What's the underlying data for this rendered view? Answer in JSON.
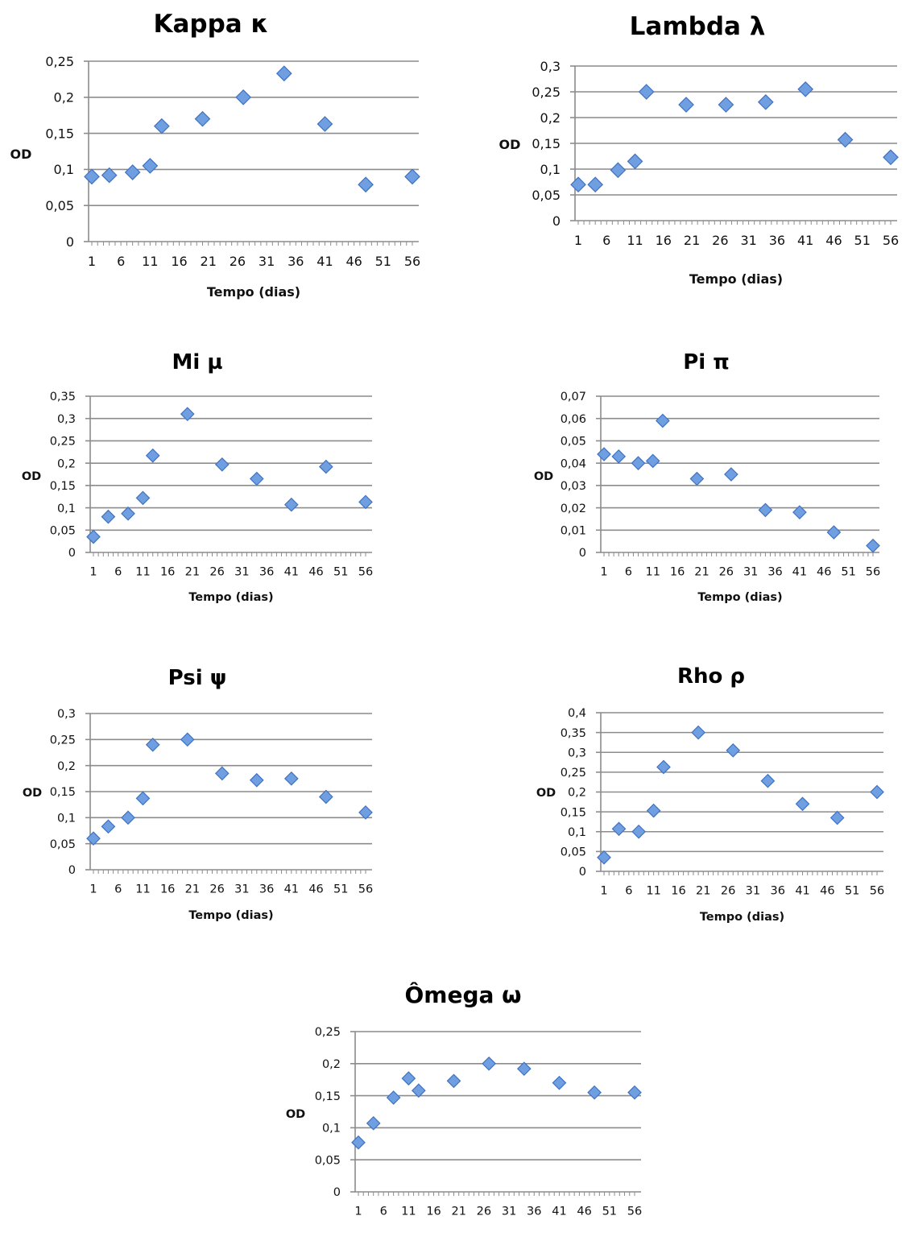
{
  "chart_data": [
    {
      "type": "scatter",
      "title": "Kappa κ",
      "xlabel": "Tempo (dias)",
      "ylabel": "OD",
      "ylim": [
        0,
        0.25
      ],
      "yticks": [
        "0",
        "0,05",
        "0,1",
        "0,15",
        "0,2",
        "0,25"
      ],
      "xlim": [
        1,
        56
      ],
      "xticks": [
        "1",
        "6",
        "11",
        "16",
        "21",
        "26",
        "31",
        "36",
        "41",
        "46",
        "51",
        "56"
      ],
      "grid": true,
      "x": [
        1,
        4,
        8,
        11,
        13,
        20,
        27,
        34,
        41,
        48,
        56
      ],
      "y": [
        0.09,
        0.092,
        0.096,
        0.105,
        0.16,
        0.17,
        0.2,
        0.233,
        0.163,
        0.079,
        0.09
      ]
    },
    {
      "type": "scatter",
      "title": "Lambda λ",
      "xlabel": "Tempo (dias)",
      "ylabel": "OD",
      "ylim": [
        0,
        0.3
      ],
      "yticks": [
        "0",
        "0,05",
        "0,1",
        "0,15",
        "0,2",
        "0,25",
        "0,3"
      ],
      "xlim": [
        1,
        56
      ],
      "xticks": [
        "1",
        "6",
        "11",
        "16",
        "21",
        "26",
        "31",
        "36",
        "41",
        "46",
        "51",
        "56"
      ],
      "grid": true,
      "x": [
        1,
        4,
        8,
        11,
        13,
        20,
        27,
        34,
        41,
        48,
        56
      ],
      "y": [
        0.07,
        0.07,
        0.098,
        0.115,
        0.25,
        0.225,
        0.225,
        0.23,
        0.255,
        0.157,
        0.123
      ]
    },
    {
      "type": "scatter",
      "title": "Mi µ",
      "xlabel": "Tempo (dias)",
      "ylabel": "OD",
      "ylim": [
        0,
        0.35
      ],
      "yticks": [
        "0",
        "0,05",
        "0,1",
        "0,15",
        "0,2",
        "0,25",
        "0,3",
        "0,35"
      ],
      "xlim": [
        1,
        56
      ],
      "xticks": [
        "1",
        "6",
        "11",
        "16",
        "21",
        "26",
        "31",
        "36",
        "41",
        "46",
        "51",
        "56"
      ],
      "grid": true,
      "x": [
        1,
        4,
        8,
        11,
        13,
        20,
        27,
        34,
        41,
        48,
        56
      ],
      "y": [
        0.035,
        0.08,
        0.087,
        0.122,
        0.217,
        0.31,
        0.197,
        0.165,
        0.107,
        0.192,
        0.113
      ]
    },
    {
      "type": "scatter",
      "title": "Pi π",
      "xlabel": "Tempo (dias)",
      "ylabel": "OD",
      "ylim": [
        0,
        0.07
      ],
      "yticks": [
        "0",
        "0,01",
        "0,02",
        "0,03",
        "0,04",
        "0,05",
        "0,06",
        "0,07"
      ],
      "xlim": [
        1,
        56
      ],
      "xticks": [
        "1",
        "6",
        "11",
        "16",
        "21",
        "26",
        "31",
        "36",
        "41",
        "46",
        "51",
        "56"
      ],
      "grid": true,
      "x": [
        1,
        4,
        8,
        11,
        13,
        20,
        27,
        34,
        41,
        48,
        56
      ],
      "y": [
        0.044,
        0.043,
        0.04,
        0.041,
        0.059,
        0.033,
        0.035,
        0.019,
        0.018,
        0.009,
        0.003
      ]
    },
    {
      "type": "scatter",
      "title": "Psi ψ",
      "xlabel": "Tempo (dias)",
      "ylabel": "OD",
      "ylim": [
        0,
        0.3
      ],
      "yticks": [
        "0",
        "0,05",
        "0,1",
        "0,15",
        "0,2",
        "0,25",
        "0,3"
      ],
      "xlim": [
        1,
        56
      ],
      "xticks": [
        "1",
        "6",
        "11",
        "16",
        "21",
        "26",
        "31",
        "36",
        "41",
        "46",
        "51",
        "56"
      ],
      "grid": true,
      "x": [
        1,
        4,
        8,
        11,
        13,
        20,
        27,
        34,
        41,
        48,
        56
      ],
      "y": [
        0.06,
        0.083,
        0.1,
        0.137,
        0.24,
        0.25,
        0.185,
        0.172,
        0.175,
        0.14,
        0.11
      ]
    },
    {
      "type": "scatter",
      "title": "Rho ρ",
      "xlabel": "Tempo (dias)",
      "ylabel": "OD",
      "ylim": [
        0,
        0.4
      ],
      "yticks": [
        "0",
        "0,05",
        "0,1",
        "0,15",
        "0,2",
        "0,25",
        "0,3",
        "0,35",
        "0,4"
      ],
      "xlim": [
        1,
        56
      ],
      "xticks": [
        "1",
        "6",
        "11",
        "16",
        "21",
        "26",
        "31",
        "36",
        "41",
        "46",
        "51",
        "56"
      ],
      "grid": true,
      "x": [
        1,
        4,
        8,
        11,
        13,
        20,
        27,
        34,
        41,
        48,
        56
      ],
      "y": [
        0.035,
        0.107,
        0.1,
        0.153,
        0.263,
        0.35,
        0.305,
        0.228,
        0.17,
        0.135,
        0.2
      ]
    },
    {
      "type": "scatter",
      "title": "Ômega ω",
      "xlabel": "Tempo (dias)",
      "ylabel": "OD",
      "ylim": [
        0,
        0.25
      ],
      "yticks": [
        "0",
        "0,05",
        "0,1",
        "0,15",
        "0,2",
        "0,25"
      ],
      "xlim": [
        1,
        56
      ],
      "xticks": [
        "1",
        "6",
        "11",
        "16",
        "21",
        "26",
        "31",
        "36",
        "41",
        "46",
        "51",
        "56"
      ],
      "grid": true,
      "x": [
        1,
        4,
        8,
        11,
        13,
        20,
        27,
        34,
        41,
        48,
        56
      ],
      "y": [
        0.077,
        0.107,
        0.147,
        0.177,
        0.158,
        0.173,
        0.2,
        0.192,
        0.17,
        0.155,
        0.155
      ]
    }
  ]
}
